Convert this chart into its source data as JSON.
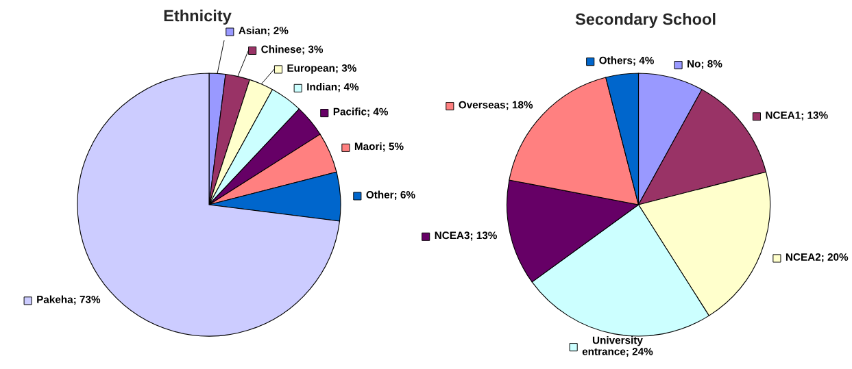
{
  "chart_data": [
    {
      "type": "pie",
      "title": "Ethnicity",
      "legend": "right",
      "categories": [
        "Asian",
        "Chinese",
        "European",
        "Indian",
        "Pacific",
        "Maori",
        "Other",
        "Pakeha"
      ],
      "values": [
        2,
        3,
        3,
        4,
        4,
        5,
        6,
        73
      ],
      "colors": [
        "#9999ff",
        "#993366",
        "#ffffcc",
        "#ccffff",
        "#660066",
        "#ff8080",
        "#0066cc",
        "#ccccff"
      ],
      "value_labels": [
        "2%",
        "3%",
        "3%",
        "4%",
        "4%",
        "5%",
        "6%",
        "73%"
      ]
    },
    {
      "type": "pie",
      "title": "Secondary School",
      "legend": "right",
      "categories": [
        "No",
        "NCEA1",
        "NCEA2",
        "University entrance",
        "NCEA3",
        "Overseas",
        "Others"
      ],
      "values": [
        8,
        13,
        20,
        24,
        13,
        18,
        4
      ],
      "colors": [
        "#9999ff",
        "#993366",
        "#ffffcc",
        "#ccffff",
        "#660066",
        "#ff8080",
        "#0066cc"
      ],
      "value_labels": [
        "8%",
        "13%",
        "20%",
        "24%",
        "13%",
        "18%",
        "4%"
      ]
    }
  ]
}
